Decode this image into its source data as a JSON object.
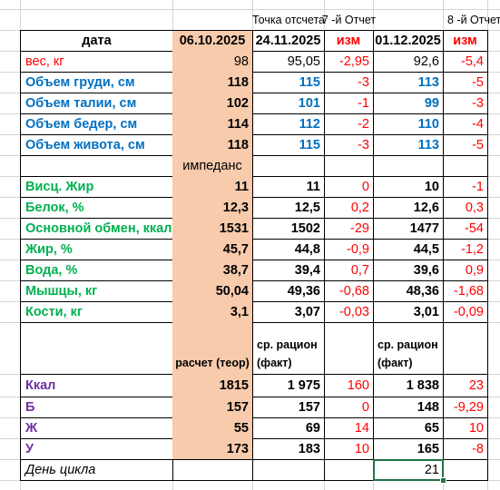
{
  "headers": {
    "point": "Точка отсчета",
    "report7": "7 -й Отчет",
    "report8": "8 -й Отчет"
  },
  "table": {
    "col_data": "дата",
    "date0": "06.10.2025",
    "date7": "24.11.2025",
    "izm7": "изм",
    "date8": "01.12.2025",
    "izm8": "изм"
  },
  "rows": [
    {
      "label": "вес, кг",
      "base": "98",
      "r7": "95,05",
      "d7": "-2,95",
      "r8": "92,6",
      "d8": "-5,4"
    },
    {
      "label": "Объем груди, см",
      "base": "118",
      "r7": "115",
      "d7": "-3",
      "r8": "113",
      "d8": "-5"
    },
    {
      "label": "Объем талии, см",
      "base": "102",
      "r7": "101",
      "d7": "-1",
      "r8": "99",
      "d8": "-3"
    },
    {
      "label": "Объем бедер, см",
      "base": "114",
      "r7": "112",
      "d7": "-2",
      "r8": "110",
      "d8": "-4"
    },
    {
      "label": "Объем живота, см",
      "base": "118",
      "r7": "115",
      "d7": "-3",
      "r8": "113",
      "d8": "-5"
    },
    {
      "label": "",
      "base": "импеданс",
      "r7": "",
      "d7": "",
      "r8": "",
      "d8": ""
    },
    {
      "label": "Висц. Жир",
      "base": "11",
      "r7": "11",
      "d7": "0",
      "r8": "10",
      "d8": "-1"
    },
    {
      "label": "Белок, %",
      "base": "12,3",
      "r7": "12,5",
      "d7": "0,2",
      "r8": "12,6",
      "d8": "0,3"
    },
    {
      "label": "Основной обмен, ккал",
      "base": "1531",
      "r7": "1502",
      "d7": "-29",
      "r8": "1477",
      "d8": "-54"
    },
    {
      "label": "Жир, %",
      "base": "45,7",
      "r7": "44,8",
      "d7": "-0,9",
      "r8": "44,5",
      "d8": "-1,2"
    },
    {
      "label": "Вода, %",
      "base": "38,7",
      "r7": "39,4",
      "d7": "0,7",
      "r8": "39,6",
      "d8": "0,9"
    },
    {
      "label": "Мышцы, кг",
      "base": "50,04",
      "r7": "49,36",
      "d7": "-0,68",
      "r8": "48,36",
      "d8": "-1,68"
    },
    {
      "label": "Кости, кг",
      "base": "3,1",
      "r7": "3,07",
      "d7": "-0,03",
      "r8": "3,01",
      "d8": "-0,09"
    }
  ],
  "nutrition_header": {
    "base": "расчет (теор)",
    "r7": "ср. рацион (факт)",
    "r8": "ср. рацион (факт)"
  },
  "nutrition": [
    {
      "label": "Ккал",
      "base": "1815",
      "r7": "1 975",
      "d7": "160",
      "r8": "1 838",
      "d8": "23"
    },
    {
      "label": "Б",
      "base": "157",
      "r7": "157",
      "d7": "0",
      "r8": "148",
      "d8": "-9,29"
    },
    {
      "label": "Ж",
      "base": "55",
      "r7": "69",
      "d7": "14",
      "r8": "65",
      "d8": "10"
    },
    {
      "label": "У",
      "base": "173",
      "r7": "183",
      "d7": "10",
      "r8": "165",
      "d8": "-8"
    }
  ],
  "cycle": {
    "label": "День цикла",
    "value": "21"
  }
}
